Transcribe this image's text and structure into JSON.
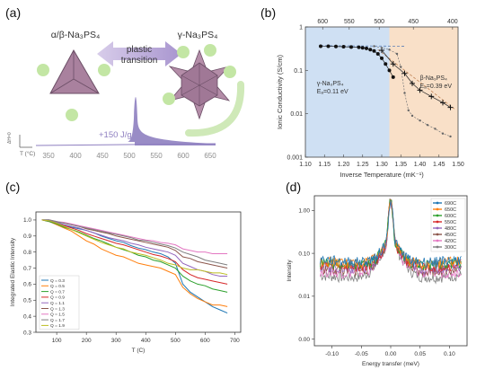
{
  "panel_labels": {
    "a": "(a)",
    "b": "(b)",
    "c": "(c)",
    "d": "(d)"
  },
  "colors": {
    "triangle": "#a9819e",
    "star": "#b48da8",
    "ion": "#c3e6a4",
    "arrow": "#b7a8d3",
    "dsc_peak": "#8e7fc0",
    "axis_text": "#8d8d8d",
    "region_blue": "#cfe0f3",
    "region_orange": "#f9e0c8"
  },
  "panel_a": {
    "alpha_label": "α/β-Na₃PS₄",
    "gamma_label": "γ-Na₃PS₄",
    "transition_line1": "plastic",
    "transition_line2": "transition",
    "enthalpy": "+150 J/g",
    "axis_label": "T (°C)",
    "dsc_label": "ΔH=0",
    "ticks": [
      "350",
      "400",
      "450",
      "500",
      "550",
      "600",
      "650"
    ]
  },
  "chart_data": [
    {
      "id": "b",
      "type": "scatter",
      "xlabel": "Inverse Temperature (mK⁻¹)",
      "ylabel": "Ionic Conductivity (S/cm)",
      "x_scale": "linear",
      "y_scale": "log",
      "xlim": [
        1.1,
        1.5
      ],
      "ylim": [
        0.001,
        1
      ],
      "x_ticks": [
        "1.10",
        "1.15",
        "1.20",
        "1.25",
        "1.30",
        "1.35",
        "1.40",
        "1.45",
        "1.50"
      ],
      "y_ticks": [
        "0.001",
        "0.01",
        "0.1",
        "1"
      ],
      "top_ticks": [
        "600",
        "550",
        "500",
        "450",
        "400"
      ],
      "annotations": [
        {
          "line1": "γ-Na₃PS₄",
          "line2": "Eₐ=0.11 eV"
        },
        {
          "line1": "β-Na₃PS₄",
          "line2": "Eₐ=0.39 eV"
        }
      ],
      "regions": [
        {
          "x": [
            1.1,
            1.32
          ],
          "name": "blue"
        },
        {
          "x": [
            1.32,
            1.5
          ],
          "name": "orange"
        }
      ],
      "series": [
        {
          "marker": "filled",
          "points": [
            [
              1.14,
              0.36
            ],
            [
              1.16,
              0.36
            ],
            [
              1.18,
              0.355
            ],
            [
              1.2,
              0.35
            ],
            [
              1.22,
              0.345
            ],
            [
              1.24,
              0.34
            ],
            [
              1.25,
              0.33
            ],
            [
              1.26,
              0.32
            ],
            [
              1.27,
              0.3
            ],
            [
              1.28,
              0.28
            ],
            [
              1.29,
              0.24
            ],
            [
              1.3,
              0.19
            ],
            [
              1.31,
              0.14
            ],
            [
              1.32,
              0.1
            ],
            [
              1.33,
              0.07
            ]
          ]
        },
        {
          "marker": "plus",
          "points": [
            [
              1.3,
              0.29
            ],
            [
              1.33,
              0.14
            ],
            [
              1.36,
              0.085
            ],
            [
              1.38,
              0.05
            ],
            [
              1.4,
              0.035
            ],
            [
              1.43,
              0.025
            ],
            [
              1.46,
              0.018
            ],
            [
              1.48,
              0.014
            ]
          ]
        },
        {
          "marker": "small",
          "points": [
            [
              1.28,
              0.36
            ],
            [
              1.3,
              0.33
            ],
            [
              1.32,
              0.3
            ],
            [
              1.34,
              0.24
            ],
            [
              1.35,
              0.12
            ],
            [
              1.36,
              0.03
            ],
            [
              1.37,
              0.012
            ],
            [
              1.38,
              0.009
            ],
            [
              1.4,
              0.007
            ],
            [
              1.42,
              0.0055
            ],
            [
              1.44,
              0.0045
            ],
            [
              1.46,
              0.0035
            ],
            [
              1.48,
              0.003
            ]
          ]
        }
      ]
    },
    {
      "id": "c",
      "type": "line",
      "xlabel": "T (C)",
      "ylabel": "Integrated Elastic Intensity",
      "xlim": [
        30,
        720
      ],
      "ylim": [
        0.3,
        1.05
      ],
      "x_ticks": [
        100,
        200,
        300,
        400,
        500,
        600,
        700
      ],
      "y_ticks": [
        0.3,
        0.4,
        0.5,
        0.6,
        0.7,
        0.8,
        0.9,
        1.0
      ],
      "x": [
        50,
        75,
        100,
        125,
        150,
        175,
        200,
        225,
        250,
        275,
        300,
        325,
        350,
        375,
        400,
        425,
        450,
        475,
        500,
        525,
        550,
        575,
        600,
        625,
        650,
        675
      ],
      "series": [
        {
          "name": "Q = 0.3",
          "color": "#1f77b4",
          "values": [
            1.0,
            1.0,
            0.985,
            0.97,
            0.955,
            0.945,
            0.935,
            0.92,
            0.9,
            0.885,
            0.87,
            0.86,
            0.84,
            0.825,
            0.815,
            0.8,
            0.79,
            0.77,
            0.73,
            0.6,
            0.55,
            0.52,
            0.49,
            0.46,
            0.44,
            0.42
          ]
        },
        {
          "name": "Q = 0.5",
          "color": "#ff7f0e",
          "values": [
            1.0,
            0.99,
            0.97,
            0.95,
            0.93,
            0.9,
            0.87,
            0.85,
            0.82,
            0.8,
            0.78,
            0.77,
            0.75,
            0.73,
            0.72,
            0.71,
            0.7,
            0.68,
            0.66,
            0.58,
            0.54,
            0.51,
            0.49,
            0.47,
            0.47,
            0.46
          ]
        },
        {
          "name": "Q = 0.7",
          "color": "#2ca02c",
          "values": [
            1.0,
            0.99,
            0.975,
            0.955,
            0.94,
            0.925,
            0.905,
            0.885,
            0.87,
            0.85,
            0.83,
            0.815,
            0.8,
            0.78,
            0.77,
            0.75,
            0.74,
            0.72,
            0.7,
            0.65,
            0.62,
            0.6,
            0.59,
            0.57,
            0.56,
            0.55
          ]
        },
        {
          "name": "Q = 0.9",
          "color": "#d62728",
          "values": [
            1.0,
            0.995,
            0.98,
            0.965,
            0.95,
            0.935,
            0.915,
            0.9,
            0.885,
            0.87,
            0.855,
            0.845,
            0.83,
            0.815,
            0.8,
            0.785,
            0.775,
            0.76,
            0.74,
            0.69,
            0.66,
            0.64,
            0.63,
            0.62,
            0.61,
            0.6
          ]
        },
        {
          "name": "Q = 1.1",
          "color": "#9467bd",
          "values": [
            1.0,
            0.995,
            0.985,
            0.97,
            0.96,
            0.95,
            0.935,
            0.92,
            0.905,
            0.89,
            0.88,
            0.87,
            0.855,
            0.845,
            0.83,
            0.82,
            0.81,
            0.8,
            0.78,
            0.73,
            0.71,
            0.69,
            0.68,
            0.66,
            0.65,
            0.65
          ]
        },
        {
          "name": "Q = 1.3",
          "color": "#8c564b",
          "values": [
            1.0,
            1.0,
            0.99,
            0.98,
            0.97,
            0.96,
            0.945,
            0.935,
            0.925,
            0.915,
            0.9,
            0.89,
            0.88,
            0.87,
            0.86,
            0.85,
            0.84,
            0.83,
            0.81,
            0.77,
            0.76,
            0.74,
            0.73,
            0.72,
            0.71,
            0.7
          ]
        },
        {
          "name": "Q = 1.5",
          "color": "#e377c2",
          "values": [
            1.0,
            1.0,
            0.99,
            0.985,
            0.975,
            0.965,
            0.955,
            0.945,
            0.935,
            0.925,
            0.915,
            0.905,
            0.895,
            0.885,
            0.875,
            0.87,
            0.86,
            0.855,
            0.845,
            0.82,
            0.81,
            0.8,
            0.8,
            0.79,
            0.79,
            0.79
          ]
        },
        {
          "name": "Q = 1.7",
          "color": "#7f7f7f",
          "values": [
            1.0,
            1.0,
            0.99,
            0.98,
            0.97,
            0.96,
            0.95,
            0.94,
            0.93,
            0.92,
            0.91,
            0.9,
            0.89,
            0.875,
            0.87,
            0.86,
            0.85,
            0.84,
            0.825,
            0.8,
            0.785,
            0.77,
            0.75,
            0.74,
            0.73,
            0.72
          ]
        },
        {
          "name": "Q = 1.9",
          "color": "#bcbd22",
          "values": [
            1.0,
            0.995,
            0.98,
            0.96,
            0.94,
            0.92,
            0.9,
            0.88,
            0.86,
            0.845,
            0.83,
            0.82,
            0.8,
            0.79,
            0.78,
            0.765,
            0.75,
            0.73,
            0.72,
            0.7,
            0.69,
            0.69,
            0.68,
            0.67,
            0.67,
            0.66
          ]
        }
      ],
      "legend_position": "bottom-left"
    },
    {
      "id": "d",
      "type": "line",
      "xlabel": "Energy transfer (meV)",
      "ylabel": "Intensity",
      "y_scale": "log",
      "xlim": [
        -0.13,
        0.13
      ],
      "x_ticks": [
        "-0.10",
        "-0.05",
        "0.00",
        "0.05",
        "0.10"
      ],
      "y_ticks": [
        "0.00",
        "0.01",
        "0.10",
        "1.00"
      ],
      "legend_position": "top-right",
      "series": [
        {
          "name": "690C",
          "color": "#1f77b4",
          "base": 0.052
        },
        {
          "name": "650C",
          "color": "#ff7f0e",
          "base": 0.048
        },
        {
          "name": "600C",
          "color": "#2ca02c",
          "base": 0.044
        },
        {
          "name": "550C",
          "color": "#d62728",
          "base": 0.04
        },
        {
          "name": "480C",
          "color": "#9467bd",
          "base": 0.036
        },
        {
          "name": "450C",
          "color": "#8c564b",
          "base": 0.032
        },
        {
          "name": "420C",
          "color": "#e377c2",
          "base": 0.028
        },
        {
          "name": "300C",
          "color": "#7f7f7f",
          "base": 0.022
        }
      ]
    }
  ]
}
